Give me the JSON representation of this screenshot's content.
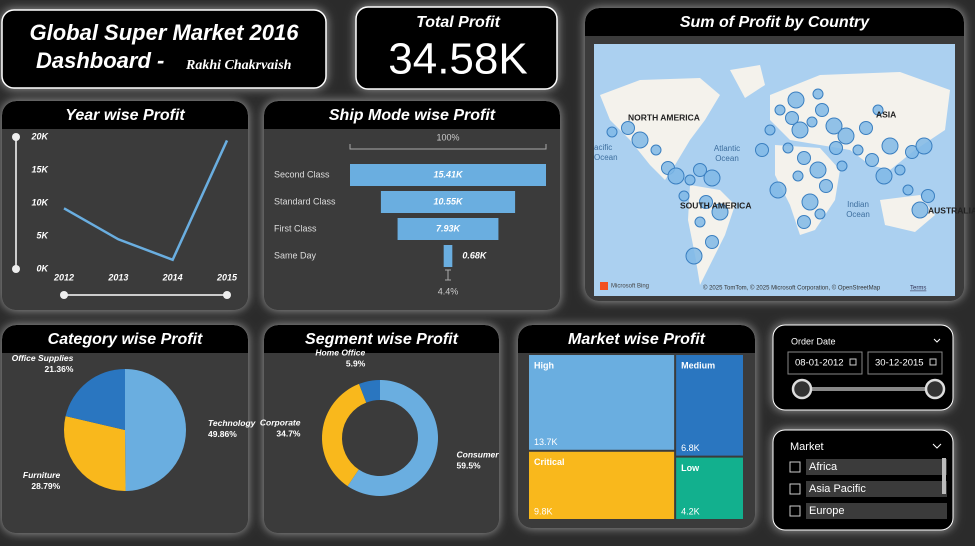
{
  "header": {
    "title": "Global Super Market 2016",
    "subtitle": "Dashboard -",
    "author": "Rakhi Chakrvaish"
  },
  "kpi": {
    "label": "Total Profit",
    "value": "34.58K"
  },
  "chart_data": [
    {
      "type": "line",
      "title": "Year wise Profit",
      "categories": [
        "2012",
        "2013",
        "2014",
        "2015"
      ],
      "values": [
        9200,
        4500,
        1400,
        19480
      ],
      "color": "#6aaee0",
      "ylim": [
        0,
        20000
      ],
      "yticks": [
        {
          "value": 0,
          "label": "0K"
        },
        {
          "value": 5000,
          "label": "5K"
        },
        {
          "value": 10000,
          "label": "10K"
        },
        {
          "value": 15000,
          "label": "15K"
        },
        {
          "value": 20000,
          "label": "20K"
        }
      ]
    },
    {
      "type": "funnel",
      "title": "Ship Mode wise Profit",
      "categories": [
        "Second Class",
        "Standard Class",
        "First Class",
        "Same Day"
      ],
      "values": [
        15410,
        10550,
        7930,
        680
      ],
      "value_labels": [
        "15.41K",
        "10.55K",
        "7.93K",
        "0.68K"
      ],
      "color": "#6aaee0",
      "annotations": [
        "100%",
        "4.4%"
      ]
    },
    {
      "type": "pie",
      "title": "Category wise Profit",
      "categories": [
        "Technology",
        "Furniture",
        "Office Supplies"
      ],
      "values": [
        49.86,
        28.79,
        21.36
      ],
      "value_labels": [
        "49.86%",
        "28.79%",
        "21.36%"
      ],
      "colors": [
        "#6aaee0",
        "#f9b81c",
        "#2a76c0"
      ]
    },
    {
      "type": "donut",
      "title": "Segment wise Profit",
      "categories": [
        "Consumer",
        "Corporate",
        "Home Office"
      ],
      "values": [
        59.5,
        34.7,
        5.9
      ],
      "value_labels": [
        "59.5%",
        "34.7%",
        "5.9%"
      ],
      "colors": [
        "#6aaee0",
        "#f9b81c",
        "#2a76c0"
      ]
    },
    {
      "type": "treemap",
      "title": "Market wise Profit",
      "categories": [
        "High",
        "Critical",
        "Medium",
        "Low"
      ],
      "values": [
        13700,
        9800,
        6800,
        4200
      ],
      "value_labels": [
        "13.7K",
        "9.8K",
        "6.8K",
        "4.2K"
      ],
      "colors": [
        "#6aaee0",
        "#f9b81c",
        "#2a76c0",
        "#12b08e"
      ]
    },
    {
      "type": "map",
      "title": "Sum of Profit by Country",
      "labels": [
        "NORTH AMERICA",
        "Atlantic",
        "Ocean",
        "SOUTH AMERICA",
        "ASIA",
        "AUSTRALIA",
        "Indian",
        "Ocean",
        "acific",
        "Ocean"
      ],
      "credits": [
        "Microsoft Bing",
        "© 2025 TomTom, © 2025 Microsoft Corporation, © OpenStreetMap",
        "Terms"
      ]
    }
  ],
  "slicers": {
    "date": {
      "label": "Order Date",
      "start": "08-01-2012",
      "end": "30-12-2015"
    },
    "market": {
      "label": "Market",
      "options": [
        "Africa",
        "Asia Pacific",
        "Europe"
      ]
    }
  }
}
